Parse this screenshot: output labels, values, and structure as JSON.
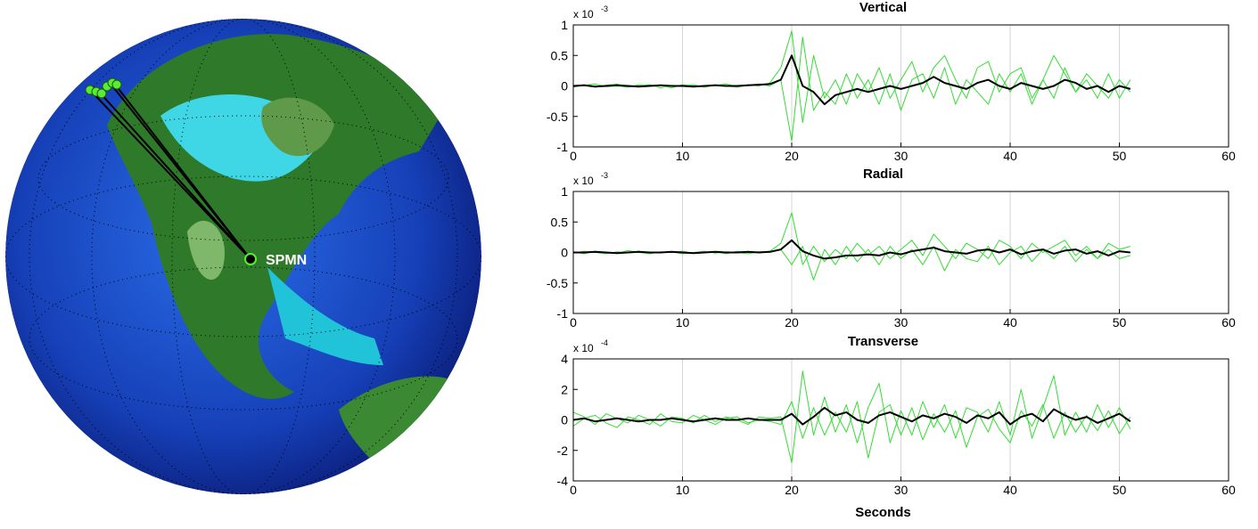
{
  "map": {
    "station_label": "SPMN"
  },
  "chart_data": [
    {
      "type": "line",
      "title": "Vertical",
      "y_multiplier": "x 10",
      "y_exponent": "-3",
      "x": [
        0,
        1,
        2,
        3,
        4,
        5,
        6,
        7,
        8,
        9,
        10,
        11,
        12,
        13,
        14,
        15,
        16,
        17,
        18,
        19,
        20,
        21,
        22,
        23,
        24,
        25,
        26,
        27,
        28,
        29,
        30,
        31,
        32,
        33,
        34,
        35,
        36,
        37,
        38,
        39,
        40,
        41,
        42,
        43,
        44,
        45,
        46,
        47,
        48,
        49,
        50,
        51
      ],
      "xlim": [
        0,
        60
      ],
      "xticks": [
        0,
        10,
        20,
        30,
        40,
        50,
        60
      ],
      "ylim": [
        -1,
        1
      ],
      "yticks": [
        -1,
        -0.5,
        0,
        0.5,
        1
      ],
      "grid": "x",
      "series": [
        {
          "color": "#33dd33",
          "width": 1,
          "values": [
            0,
            0.02,
            -0.02,
            0.01,
            0.03,
            -0.01,
            0,
            0.02,
            -0.03,
            0.01,
            0,
            0.02,
            -0.02,
            0.01,
            0.03,
            -0.01,
            0.02,
            0,
            0.05,
            0.3,
            0.9,
            -0.6,
            0.5,
            -0.2,
            0.1,
            -0.3,
            0.2,
            -0.1,
            0.3,
            -0.2,
            0.1,
            0.4,
            -0.1,
            0.3,
            0.5,
            0.1,
            -0.2,
            0.3,
            0.4,
            -0.1,
            0.2,
            0.3,
            -0.2,
            0.1,
            0.5,
            0.2,
            -0.1,
            0.2,
            0,
            -0.2,
            0.1,
            -0.1
          ]
        },
        {
          "color": "#33dd33",
          "width": 1,
          "values": [
            -0.02,
            0.01,
            0.03,
            -0.01,
            0,
            -0.02,
            0.02,
            0,
            0.01,
            -0.03,
            0.02,
            0,
            -0.01,
            0.02,
            0,
            -0.02,
            0.01,
            0.03,
            0,
            0.1,
            -0.9,
            0.8,
            -0.4,
            -0.1,
            -0.3,
            0.2,
            -0.2,
            0.1,
            -0.3,
            0.2,
            -0.4,
            0.1,
            0.2,
            -0.2,
            0.3,
            -0.3,
            0.1,
            -0.1,
            -0.3,
            0.2,
            -0.1,
            0.2,
            -0.3,
            0.1,
            -0.2,
            0.3,
            -0.1,
            0.1,
            -0.2,
            0.2,
            -0.2,
            0.1
          ]
        },
        {
          "color": "#000000",
          "width": 2,
          "values": [
            0,
            0.01,
            -0.01,
            0,
            0.01,
            0,
            -0.01,
            0,
            0.01,
            0,
            0,
            -0.01,
            0,
            0.01,
            0,
            0,
            0.01,
            0.02,
            0.03,
            0.1,
            0.5,
            0,
            -0.1,
            -0.3,
            -0.15,
            -0.1,
            -0.05,
            -0.1,
            -0.05,
            0,
            -0.05,
            0,
            0.05,
            0.15,
            0.05,
            0,
            -0.05,
            0.05,
            0.1,
            0,
            -0.05,
            0.05,
            0,
            -0.05,
            0,
            0.1,
            0.05,
            -0.05,
            0,
            -0.1,
            0,
            -0.05
          ]
        }
      ]
    },
    {
      "type": "line",
      "title": "Radial",
      "y_multiplier": "x 10",
      "y_exponent": "-3",
      "x": [
        0,
        1,
        2,
        3,
        4,
        5,
        6,
        7,
        8,
        9,
        10,
        11,
        12,
        13,
        14,
        15,
        16,
        17,
        18,
        19,
        20,
        21,
        22,
        23,
        24,
        25,
        26,
        27,
        28,
        29,
        30,
        31,
        32,
        33,
        34,
        35,
        36,
        37,
        38,
        39,
        40,
        41,
        42,
        43,
        44,
        45,
        46,
        47,
        48,
        49,
        50,
        51
      ],
      "xlim": [
        0,
        60
      ],
      "xticks": [
        0,
        10,
        20,
        30,
        40,
        50,
        60
      ],
      "ylim": [
        -1,
        1
      ],
      "yticks": [
        -1,
        -0.5,
        0,
        0.5,
        1
      ],
      "grid": "x",
      "series": [
        {
          "color": "#33dd33",
          "width": 1,
          "values": [
            0.01,
            -0.02,
            0.02,
            0,
            -0.01,
            0.03,
            0,
            -0.02,
            0.01,
            0,
            0.02,
            -0.01,
            0,
            0.01,
            -0.02,
            0.02,
            0,
            0.01,
            0.02,
            0.15,
            0.65,
            -0.2,
            0.1,
            -0.15,
            0.05,
            -0.1,
            0.15,
            -0.05,
            0.1,
            -0.1,
            0.05,
            0.2,
            -0.05,
            0.3,
            0.1,
            -0.1,
            0.15,
            0.05,
            -0.1,
            0.2,
            0.1,
            -0.1,
            0.15,
            0,
            0.1,
            0.2,
            -0.05,
            0.1,
            -0.1,
            0.15,
            0.05,
            0.1
          ]
        },
        {
          "color": "#33dd33",
          "width": 1,
          "values": [
            -0.01,
            0.02,
            0,
            -0.02,
            0.01,
            0,
            0.02,
            -0.01,
            0,
            0.01,
            -0.02,
            0,
            0.02,
            -0.01,
            0.01,
            0,
            -0.02,
            0.01,
            0,
            0.05,
            -0.2,
            0.1,
            -0.45,
            0.05,
            -0.2,
            0.1,
            -0.15,
            0.05,
            -0.2,
            0.1,
            -0.1,
            0.05,
            -0.2,
            0.1,
            -0.3,
            0.05,
            -0.1,
            -0.15,
            0.1,
            -0.2,
            0,
            0.1,
            -0.15,
            0.05,
            -0.1,
            0.1,
            -0.15,
            0.05,
            -0.1,
            0.05,
            -0.1,
            -0.05
          ]
        },
        {
          "color": "#000000",
          "width": 2,
          "values": [
            0,
            0,
            0.01,
            0,
            -0.01,
            0,
            0.01,
            0,
            0,
            0.01,
            0,
            -0.01,
            0,
            0.01,
            0,
            0,
            0.01,
            0,
            0.01,
            0.05,
            0.2,
            0.02,
            -0.05,
            -0.1,
            -0.08,
            -0.05,
            -0.05,
            -0.03,
            -0.05,
            0,
            -0.03,
            0.02,
            0.05,
            0.08,
            0.02,
            0,
            -0.02,
            0.03,
            0.05,
            0,
            0.05,
            -0.03,
            0.02,
            0.05,
            -0.02,
            0.03,
            0.05,
            -0.02,
            0.02,
            -0.05,
            0.02,
            0
          ]
        }
      ]
    },
    {
      "type": "line",
      "title": "Transverse",
      "y_multiplier": "x 10",
      "y_exponent": "-4",
      "xlabel": "Seconds",
      "x": [
        0,
        1,
        2,
        3,
        4,
        5,
        6,
        7,
        8,
        9,
        10,
        11,
        12,
        13,
        14,
        15,
        16,
        17,
        18,
        19,
        20,
        21,
        22,
        23,
        24,
        25,
        26,
        27,
        28,
        29,
        30,
        31,
        32,
        33,
        34,
        35,
        36,
        37,
        38,
        39,
        40,
        41,
        42,
        43,
        44,
        45,
        46,
        47,
        48,
        49,
        50,
        51
      ],
      "xlim": [
        0,
        60
      ],
      "xticks": [
        0,
        10,
        20,
        30,
        40,
        50,
        60
      ],
      "ylim": [
        -4,
        4
      ],
      "yticks": [
        -4,
        -2,
        0,
        2,
        4
      ],
      "grid": "x",
      "series": [
        {
          "color": "#33dd33",
          "width": 1,
          "values": [
            0.5,
            0.2,
            -0.3,
            0.4,
            0.1,
            -0.2,
            0.3,
            0,
            -0.4,
            0.2,
            0.1,
            -0.2,
            0.3,
            -0.1,
            0.2,
            0,
            -0.3,
            0.2,
            0.1,
            0.2,
            -2.8,
            3.2,
            -1,
            1.5,
            -0.8,
            1,
            -1.5,
            0.8,
            2.4,
            -1.5,
            0.6,
            -1,
            1.2,
            -0.5,
            1,
            -1.2,
            0.8,
            0.5,
            -0.8,
            1.2,
            -1,
            2,
            -1.2,
            0.8,
            2.9,
            -1,
            0.5,
            -0.8,
            1,
            -0.5,
            0.8,
            -0.6
          ]
        },
        {
          "color": "#33dd33",
          "width": 1,
          "values": [
            -0.4,
            0.1,
            0.3,
            -0.2,
            -0.5,
            0.2,
            0,
            -0.3,
            0.4,
            -0.1,
            -0.2,
            0.3,
            0,
            -0.3,
            0.1,
            0.2,
            -0.2,
            0,
            -0.1,
            -0.3,
            1.2,
            -1.2,
            0.8,
            -1,
            0.5,
            -0.8,
            1.2,
            -2.5,
            0.5,
            1,
            -1,
            0.8,
            -1.3,
            0.4,
            -0.8,
            0.6,
            -1.8,
            0.2,
            0.7,
            -0.6,
            -1.5,
            0.6,
            -0.4,
            1,
            -1.2,
            0.5,
            -0.8,
            0.3,
            -0.7,
            0.6,
            -0.9,
            0.2
          ]
        },
        {
          "color": "#000000",
          "width": 2,
          "values": [
            0,
            0.1,
            -0.1,
            0,
            0.1,
            0,
            -0.1,
            0,
            0,
            0.1,
            0,
            -0.1,
            0,
            0.1,
            0,
            0,
            0.1,
            0,
            0,
            0,
            0.4,
            -0.3,
            0.2,
            0.8,
            0.3,
            0.5,
            0,
            -0.2,
            0.3,
            0.5,
            0.2,
            -0.1,
            0.3,
            0.1,
            0.4,
            0.2,
            -0.2,
            0.3,
            0.1,
            0.5,
            -0.3,
            0.2,
            0.4,
            -0.1,
            0.7,
            0.3,
            0,
            0.2,
            -0.2,
            0.1,
            0.4,
            -0.1
          ]
        }
      ]
    }
  ]
}
